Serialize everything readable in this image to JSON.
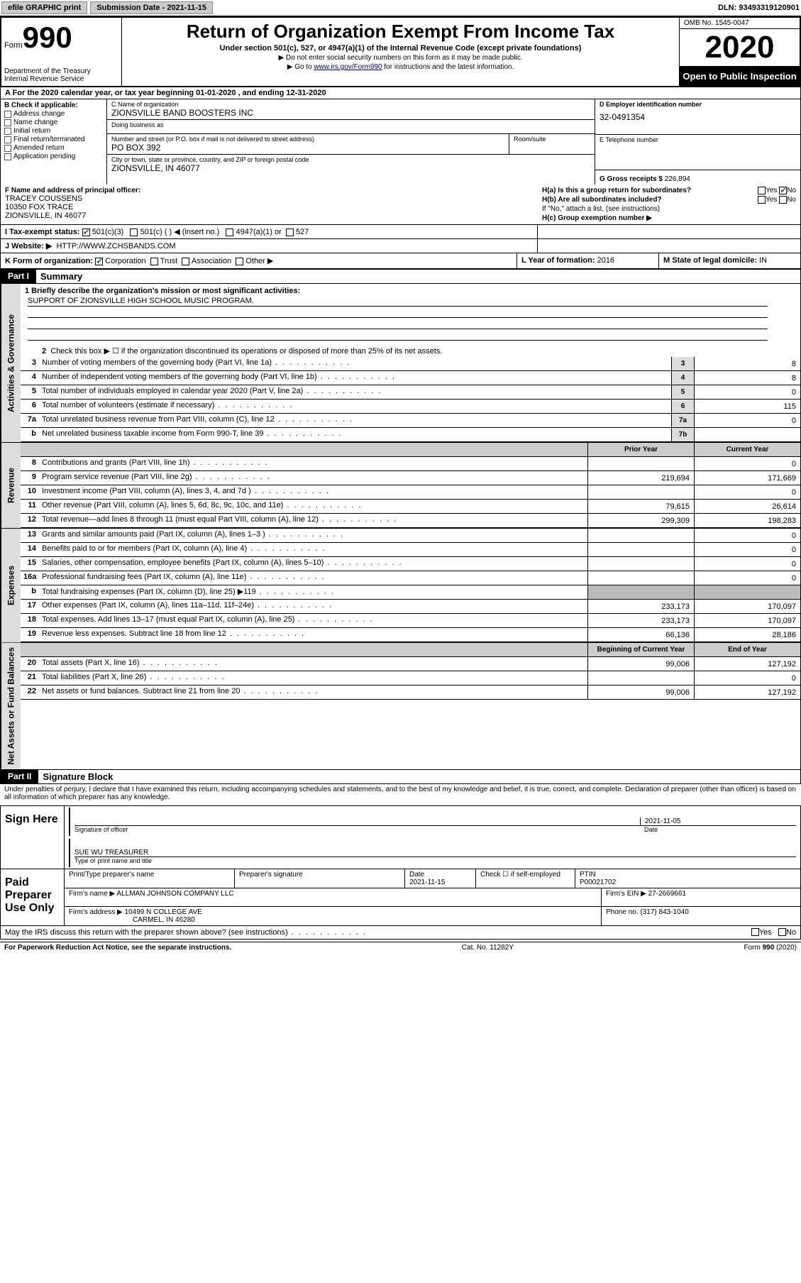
{
  "topbar": {
    "efile": "efile GRAPHIC print",
    "subdate_label": "Submission Date - 2021-11-15",
    "dln": "DLN: 93493319120901"
  },
  "header": {
    "form_label": "Form",
    "form_number": "990",
    "dept": "Department of the Treasury\nInternal Revenue Service",
    "title": "Return of Organization Exempt From Income Tax",
    "subtitle": "Under section 501(c), 527, or 4947(a)(1) of the Internal Revenue Code (except private foundations)",
    "instr1": "▶ Do not enter social security numbers on this form as it may be made public.",
    "instr2_pre": "▶ Go to ",
    "instr2_link": "www.irs.gov/Form990",
    "instr2_post": " for instructions and the latest information.",
    "omb": "OMB No. 1545-0047",
    "year": "2020",
    "public": "Open to Public Inspection"
  },
  "row_a": "A For the 2020 calendar year, or tax year beginning 01-01-2020   , and ending 12-31-2020",
  "col_b": {
    "label": "B Check if applicable:",
    "items": [
      "Address change",
      "Name change",
      "Initial return",
      "Final return/terminated",
      "Amended return",
      "Application pending"
    ]
  },
  "col_c": {
    "name_lbl": "C Name of organization",
    "name_val": "ZIONSVILLE BAND BOOSTERS INC",
    "dba_lbl": "Doing business as",
    "dba_val": "",
    "addr_lbl": "Number and street (or P.O. box if mail is not delivered to street address)",
    "addr_val": "PO BOX 392",
    "suite_lbl": "Room/suite",
    "suite_val": "",
    "city_lbl": "City or town, state or province, country, and ZIP or foreign postal code",
    "city_val": "ZIONSVILLE, IN  46077"
  },
  "col_d": {
    "ein_lbl": "D Employer identification number",
    "ein_val": "32-0491354",
    "tel_lbl": "E Telephone number",
    "tel_val": "",
    "gross_lbl": "G Gross receipts $",
    "gross_val": "226,894"
  },
  "row_f": {
    "lbl": "F  Name and address of principal officer:",
    "name": "TRACEY COUSSENS",
    "addr1": "10350 FOX TRACE",
    "addr2": "ZIONSVILLE, IN  46077"
  },
  "row_h": {
    "ha": "H(a)  Is this a group return for subordinates?",
    "ha_no": "No",
    "hb": "H(b)  Are all subordinates included?",
    "hb_note": "If \"No,\" attach a list. (see instructions)",
    "hc": "H(c)  Group exemption number ▶"
  },
  "row_i": {
    "lbl": "I  Tax-exempt status:",
    "opt1": "501(c)(3)",
    "opt2": "501(c) (  ) ◀ (insert no.)",
    "opt3": "4947(a)(1) or",
    "opt4": "527"
  },
  "row_j": {
    "lbl": "J  Website: ▶",
    "val": "HTTP://WWW.ZCHSBANDS.COM"
  },
  "row_k": {
    "lbl": "K Form of organization:",
    "opts": [
      "Corporation",
      "Trust",
      "Association",
      "Other ▶"
    ]
  },
  "row_l": {
    "lbl": "L Year of formation:",
    "val": "2016"
  },
  "row_m": {
    "lbl": "M State of legal domicile:",
    "val": "IN"
  },
  "part1": {
    "hdr": "Part I",
    "title": "Summary",
    "sidebar_gov": "Activities & Governance",
    "sidebar_rev": "Revenue",
    "sidebar_exp": "Expenses",
    "sidebar_net": "Net Assets or Fund Balances",
    "line1_lbl": "1  Briefly describe the organization's mission or most significant activities:",
    "line1_val": "SUPPORT OF ZIONSVILLE HIGH SCHOOL MUSIC PROGRAM.",
    "line2": "Check this box ▶ ☐  if the organization discontinued its operations or disposed of more than 25% of its net assets.",
    "lines_gov": [
      {
        "n": "3",
        "d": "Number of voting members of the governing body (Part VI, line 1a)",
        "b": "3",
        "v": "8"
      },
      {
        "n": "4",
        "d": "Number of independent voting members of the governing body (Part VI, line 1b)",
        "b": "4",
        "v": "8"
      },
      {
        "n": "5",
        "d": "Total number of individuals employed in calendar year 2020 (Part V, line 2a)",
        "b": "5",
        "v": "0"
      },
      {
        "n": "6",
        "d": "Total number of volunteers (estimate if necessary)",
        "b": "6",
        "v": "115"
      },
      {
        "n": "7a",
        "d": "Total unrelated business revenue from Part VIII, column (C), line 12",
        "b": "7a",
        "v": "0"
      },
      {
        "n": "b",
        "d": "Net unrelated business taxable income from Form 990-T, line 39",
        "b": "7b",
        "v": ""
      }
    ],
    "col_prior": "Prior Year",
    "col_curr": "Current Year",
    "lines_rev": [
      {
        "n": "8",
        "d": "Contributions and grants (Part VIII, line 1h)",
        "p": "",
        "c": "0"
      },
      {
        "n": "9",
        "d": "Program service revenue (Part VIII, line 2g)",
        "p": "219,694",
        "c": "171,669"
      },
      {
        "n": "10",
        "d": "Investment income (Part VIII, column (A), lines 3, 4, and 7d )",
        "p": "",
        "c": "0"
      },
      {
        "n": "11",
        "d": "Other revenue (Part VIII, column (A), lines 5, 6d, 8c, 9c, 10c, and 11e)",
        "p": "79,615",
        "c": "26,614"
      },
      {
        "n": "12",
        "d": "Total revenue—add lines 8 through 11 (must equal Part VIII, column (A), line 12)",
        "p": "299,309",
        "c": "198,283"
      }
    ],
    "lines_exp": [
      {
        "n": "13",
        "d": "Grants and similar amounts paid (Part IX, column (A), lines 1–3 )",
        "p": "",
        "c": "0"
      },
      {
        "n": "14",
        "d": "Benefits paid to or for members (Part IX, column (A), line 4)",
        "p": "",
        "c": "0"
      },
      {
        "n": "15",
        "d": "Salaries, other compensation, employee benefits (Part IX, column (A), lines 5–10)",
        "p": "",
        "c": "0"
      },
      {
        "n": "16a",
        "d": "Professional fundraising fees (Part IX, column (A), line 11e)",
        "p": "",
        "c": "0"
      },
      {
        "n": "b",
        "d": "Total fundraising expenses (Part IX, column (D), line 25) ▶119",
        "p": "__HATCH__",
        "c": "__HATCH__"
      },
      {
        "n": "17",
        "d": "Other expenses (Part IX, column (A), lines 11a–11d, 11f–24e)",
        "p": "233,173",
        "c": "170,097"
      },
      {
        "n": "18",
        "d": "Total expenses. Add lines 13–17 (must equal Part IX, column (A), line 25)",
        "p": "233,173",
        "c": "170,097"
      },
      {
        "n": "19",
        "d": "Revenue less expenses. Subtract line 18 from line 12",
        "p": "66,136",
        "c": "28,186"
      }
    ],
    "col_beg": "Beginning of Current Year",
    "col_end": "End of Year",
    "lines_net": [
      {
        "n": "20",
        "d": "Total assets (Part X, line 16)",
        "p": "99,006",
        "c": "127,192"
      },
      {
        "n": "21",
        "d": "Total liabilities (Part X, line 26)",
        "p": "",
        "c": "0"
      },
      {
        "n": "22",
        "d": "Net assets or fund balances. Subtract line 21 from line 20",
        "p": "99,006",
        "c": "127,192"
      }
    ]
  },
  "part2": {
    "hdr": "Part II",
    "title": "Signature Block",
    "decl": "Under penalties of perjury, I declare that I have examined this return, including accompanying schedules and statements, and to the best of my knowledge and belief, it is true, correct, and complete. Declaration of preparer (other than officer) is based on all information of which preparer has any knowledge."
  },
  "sign": {
    "label": "Sign Here",
    "sig_lbl": "Signature of officer",
    "date_lbl": "Date",
    "date_val": "2021-11-05",
    "name_val": "SUE WU TREASURER",
    "name_lbl": "Type or print name and title"
  },
  "prep": {
    "label": "Paid Preparer Use Only",
    "r1": {
      "c1": "Print/Type preparer's name",
      "c2": "Preparer's signature",
      "c3_lbl": "Date",
      "c3_val": "2021-11-15",
      "c4_lbl": "Check ☐ if self-employed",
      "c5_lbl": "PTIN",
      "c5_val": "P00021702"
    },
    "r2": {
      "lbl": "Firm's name    ▶",
      "val": "ALLMAN JOHNSON COMPANY LLC",
      "ein_lbl": "Firm's EIN ▶",
      "ein_val": "27-2669661"
    },
    "r3": {
      "lbl": "Firm's address ▶",
      "val1": "10499 N COLLEGE AVE",
      "val2": "CARMEL, IN  46280",
      "ph_lbl": "Phone no.",
      "ph_val": "(317) 843-1040"
    }
  },
  "discuss": "May the IRS discuss this return with the preparer shown above? (see instructions)",
  "footer": {
    "left": "For Paperwork Reduction Act Notice, see the separate instructions.",
    "mid": "Cat. No. 11282Y",
    "right": "Form 990 (2020)"
  }
}
